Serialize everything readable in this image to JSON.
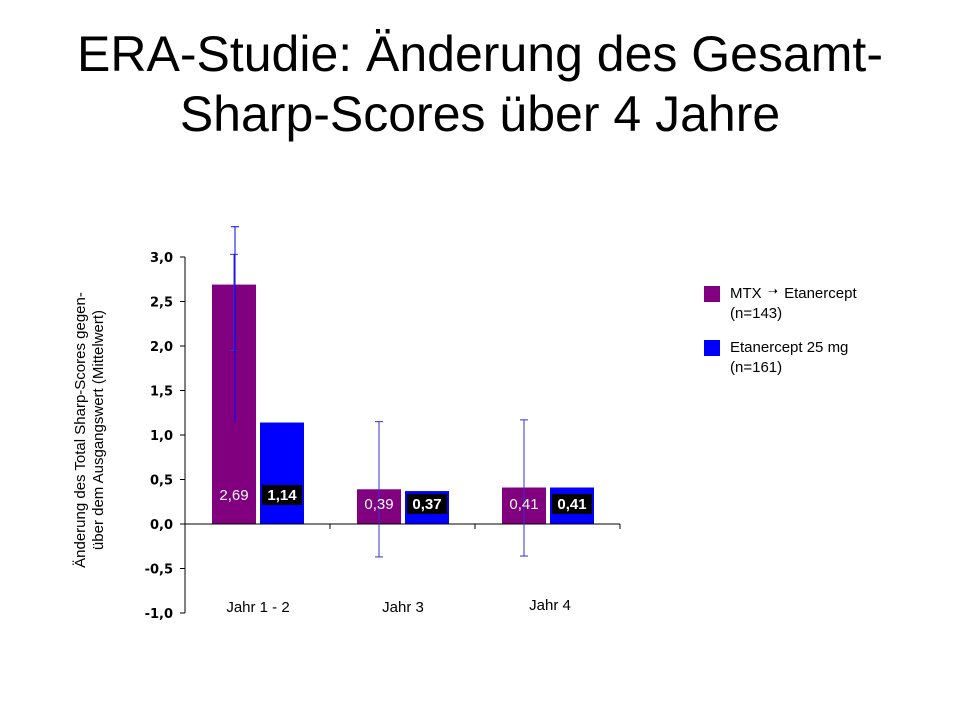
{
  "title_line1": "ERA-Studie: Änderung des Gesamt-",
  "title_line2": "Sharp-Scores über 4 Jahre",
  "colors": {
    "mtx": "#800080",
    "etanercept": "#0000ff",
    "label_bg": "#000000"
  },
  "legend": {
    "mtx_a": "MTX",
    "mtx_b": "Etanercept",
    "mtx_n": "(n=143)",
    "eta_a": "Etanercept 25 mg",
    "eta_n": "(n=161)"
  },
  "chart_data": {
    "type": "bar",
    "ylabel_line1": "Änderung des Total Sharp-Scores gegen-",
    "ylabel_line2": "über dem Ausgangswert (Mittelwert)",
    "ylim": [
      -1.0,
      3.0
    ],
    "yticks": [
      "-1,0",
      "-0,5",
      "0,0",
      "0,5",
      "1,0",
      "1,5",
      "2,0",
      "2,5",
      "3,0"
    ],
    "ytick_values": [
      -1.0,
      -0.5,
      0.0,
      0.5,
      1.0,
      1.5,
      2.0,
      2.5,
      3.0
    ],
    "categories": [
      "Jahr 1 - 2",
      "Jahr 3",
      "Jahr 4"
    ],
    "series": [
      {
        "name": "MTX → Etanercept (n=143)",
        "values": [
          2.69,
          0.39,
          0.41
        ],
        "labels": [
          "2,69",
          "0,39",
          "0,41"
        ],
        "error_low": [
          1.95,
          -0.37,
          -0.36
        ],
        "error_high": [
          3.03,
          1.15,
          1.17
        ]
      },
      {
        "name": "Etanercept 25 mg (n=161)",
        "values": [
          1.14,
          0.37,
          0.41
        ],
        "labels": [
          "1,14",
          "0,37",
          "0,41"
        ],
        "error_low": [
          null,
          null,
          null
        ],
        "error_high": [
          3.34,
          null,
          null
        ]
      }
    ]
  }
}
